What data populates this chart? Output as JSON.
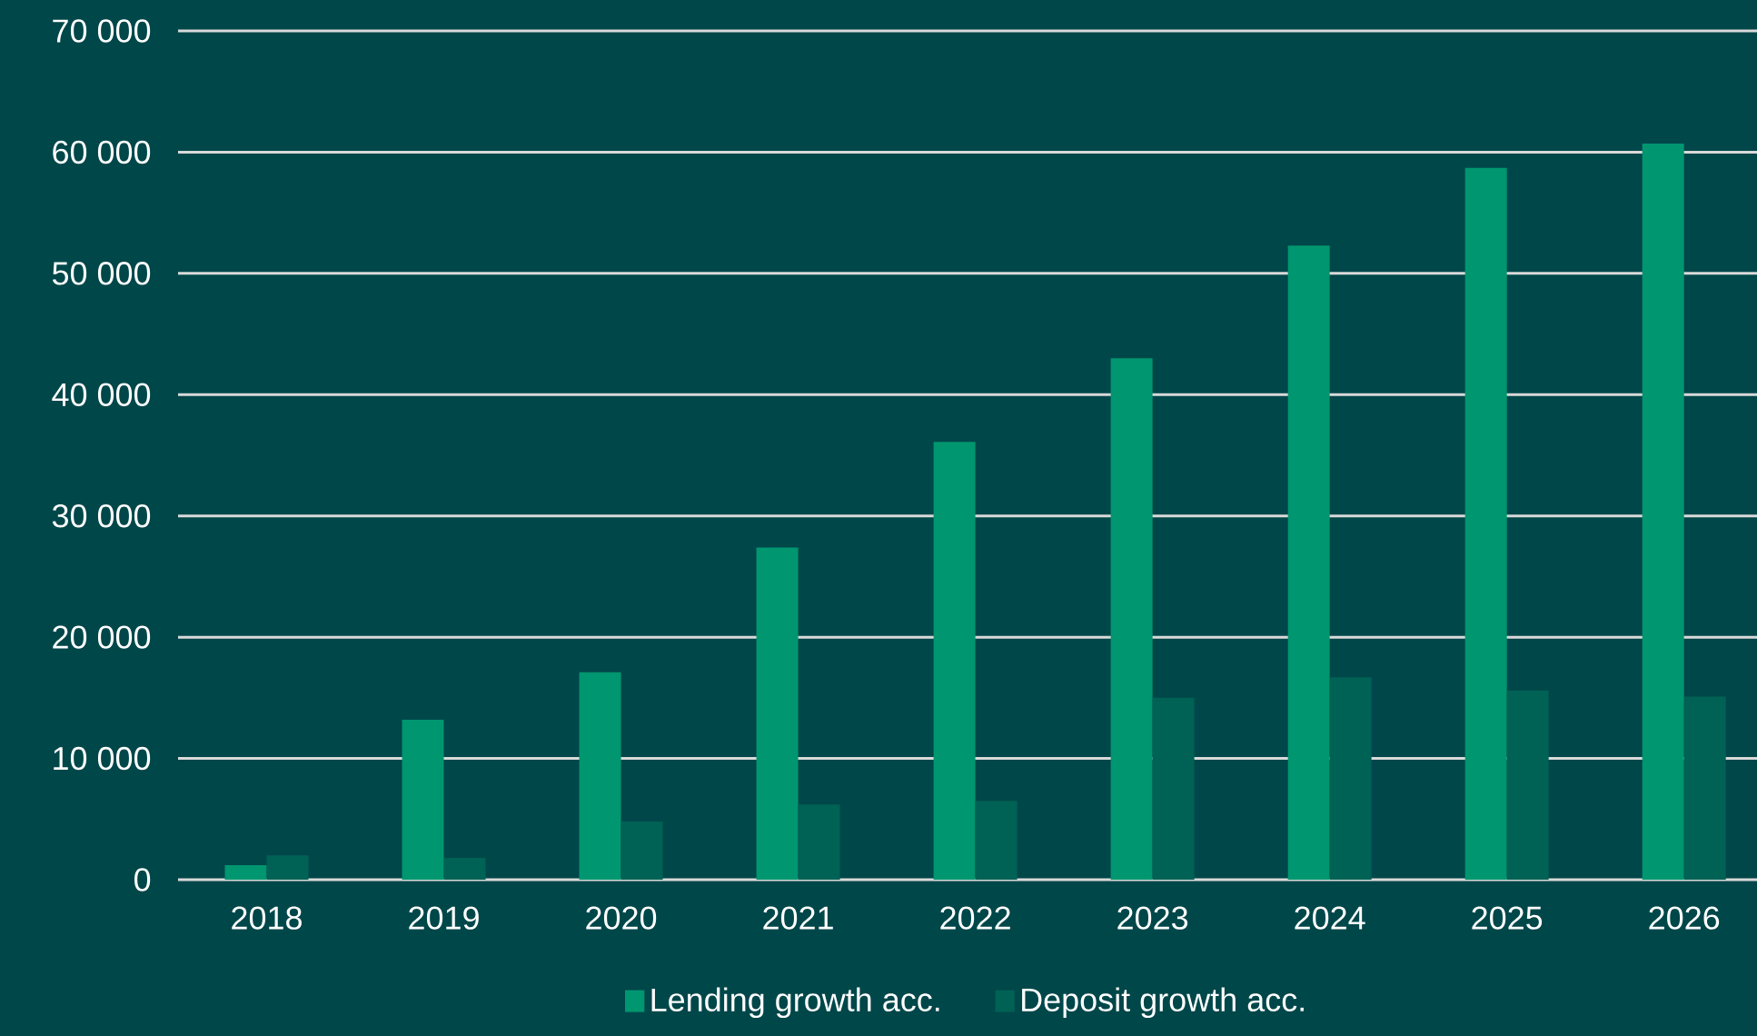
{
  "chart_data": {
    "type": "bar",
    "categories": [
      "2018",
      "2019",
      "2020",
      "2021",
      "2022",
      "2023",
      "2024",
      "2025",
      "2026"
    ],
    "series": [
      {
        "name": "Lending growth acc.",
        "color": "#00966f",
        "values": [
          1200,
          13200,
          17100,
          27400,
          36100,
          43000,
          52300,
          58700,
          60700
        ]
      },
      {
        "name": "Deposit growth acc.",
        "color": "#006155",
        "values": [
          2000,
          1800,
          4800,
          6200,
          6500,
          15000,
          16700,
          15600,
          15100
        ]
      }
    ],
    "ylim": [
      0,
      70000
    ],
    "yticks": [
      {
        "value": 0,
        "label": "0"
      },
      {
        "value": 10000,
        "label": "10 000"
      },
      {
        "value": 20000,
        "label": "20 000"
      },
      {
        "value": 30000,
        "label": "30 000"
      },
      {
        "value": 40000,
        "label": "40 000"
      },
      {
        "value": 50000,
        "label": "50 000"
      },
      {
        "value": 60000,
        "label": "60 000"
      },
      {
        "value": 70000,
        "label": "70 000"
      }
    ],
    "grid": "y",
    "legend": "bottom"
  }
}
